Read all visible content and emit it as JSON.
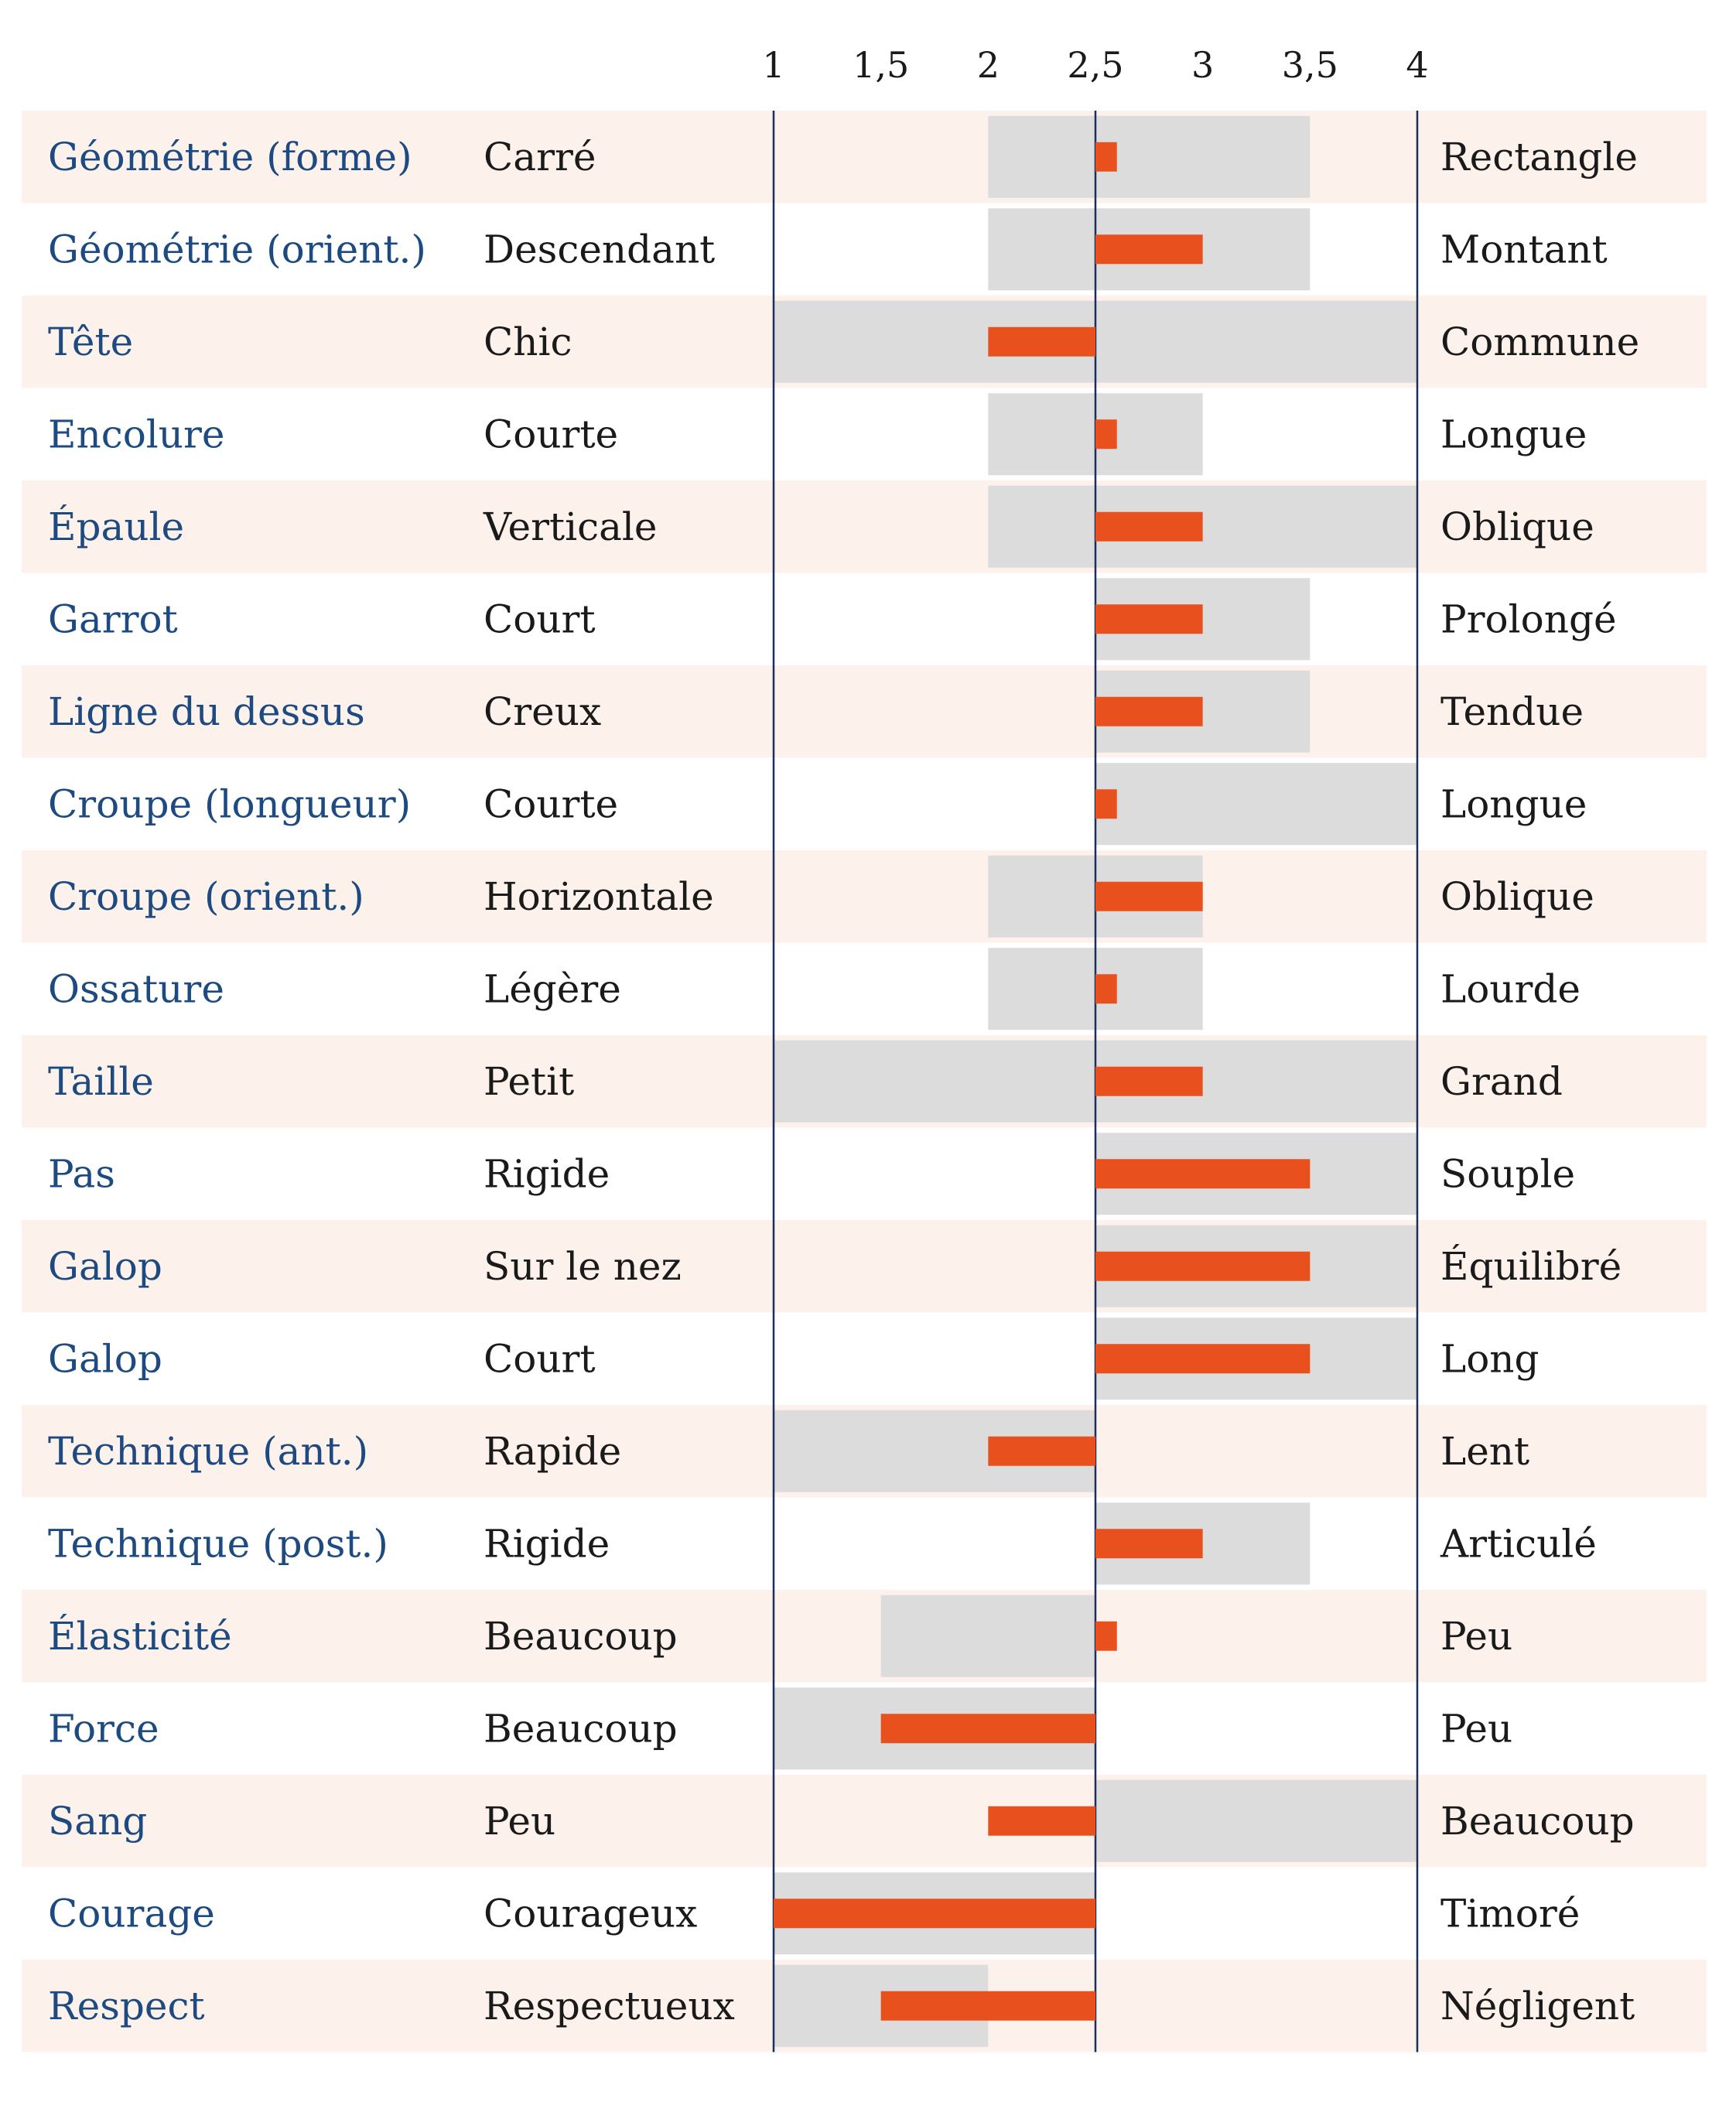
{
  "colors": {
    "row_stripe": "#fdf1ec",
    "range_band": "#dcdcdc",
    "value_bar": "#e8501e",
    "axis_line": "#1c2f5a",
    "trait_text": "#1d4a80",
    "body_text": "#1a1a1a"
  },
  "chart_data": {
    "type": "bar",
    "xlim": [
      1,
      4
    ],
    "ticks": [
      1,
      1.5,
      2,
      2.5,
      3,
      3.5,
      4
    ],
    "tick_labels": [
      "1",
      "1,5",
      "2",
      "2,5",
      "3",
      "3,5",
      "4"
    ],
    "reference_line": 2.5,
    "rows": [
      {
        "trait": "Géométrie (forme)",
        "left": "Carré",
        "right": "Rectangle",
        "range": [
          2,
          3.5
        ],
        "value": 2.6
      },
      {
        "trait": "Géométrie (orient.)",
        "left": "Descendant",
        "right": "Montant",
        "range": [
          2,
          3.5
        ],
        "value": 3
      },
      {
        "trait": "Tête",
        "left": "Chic",
        "right": "Commune",
        "range": [
          1,
          4
        ],
        "value": 2
      },
      {
        "trait": "Encolure",
        "left": "Courte",
        "right": "Longue",
        "range": [
          2,
          3
        ],
        "value": 2.6
      },
      {
        "trait": "Épaule",
        "left": "Verticale",
        "right": "Oblique",
        "range": [
          2,
          4
        ],
        "value": 3
      },
      {
        "trait": "Garrot",
        "left": "Court",
        "right": "Prolongé",
        "range": [
          2.5,
          3.5
        ],
        "value": 3
      },
      {
        "trait": "Ligne du dessus",
        "left": "Creux",
        "right": "Tendue",
        "range": [
          2.5,
          3.5
        ],
        "value": 3
      },
      {
        "trait": "Croupe (longueur)",
        "left": "Courte",
        "right": "Longue",
        "range": [
          2.5,
          4
        ],
        "value": 2.6
      },
      {
        "trait": "Croupe (orient.)",
        "left": "Horizontale",
        "right": "Oblique",
        "range": [
          2,
          3
        ],
        "value": 3
      },
      {
        "trait": "Ossature",
        "left": "Légère",
        "right": "Lourde",
        "range": [
          2,
          3
        ],
        "value": 2.6
      },
      {
        "trait": "Taille",
        "left": "Petit",
        "right": "Grand",
        "range": [
          1,
          4
        ],
        "value": 3
      },
      {
        "trait": "Pas",
        "left": "Rigide",
        "right": "Souple",
        "range": [
          2.5,
          4
        ],
        "value": 3.5
      },
      {
        "trait": "Galop",
        "left": "Sur le nez",
        "right": "Équilibré",
        "range": [
          2.5,
          4
        ],
        "value": 3.5
      },
      {
        "trait": "Galop",
        "left": "Court",
        "right": "Long",
        "range": [
          2.5,
          4
        ],
        "value": 3.5
      },
      {
        "trait": "Technique (ant.)",
        "left": "Rapide",
        "right": "Lent",
        "range": [
          1,
          2.5
        ],
        "value": 2
      },
      {
        "trait": "Technique (post.)",
        "left": "Rigide",
        "right": "Articulé",
        "range": [
          2.5,
          3.5
        ],
        "value": 3
      },
      {
        "trait": "Élasticité",
        "left": "Beaucoup",
        "right": "Peu",
        "range": [
          1.5,
          2.5
        ],
        "value": 2.6
      },
      {
        "trait": "Force",
        "left": "Beaucoup",
        "right": "Peu",
        "range": [
          1,
          2.5
        ],
        "value": 1.5
      },
      {
        "trait": "Sang",
        "left": "Peu",
        "right": "Beaucoup",
        "range": [
          2.5,
          4
        ],
        "value": 2
      },
      {
        "trait": "Courage",
        "left": "Courageux",
        "right": "Timoré",
        "range": [
          1,
          2.5
        ],
        "value": 1
      },
      {
        "trait": "Respect",
        "left": "Respectueux",
        "right": "Négligent",
        "range": [
          1,
          2
        ],
        "value": 1.5
      }
    ]
  }
}
